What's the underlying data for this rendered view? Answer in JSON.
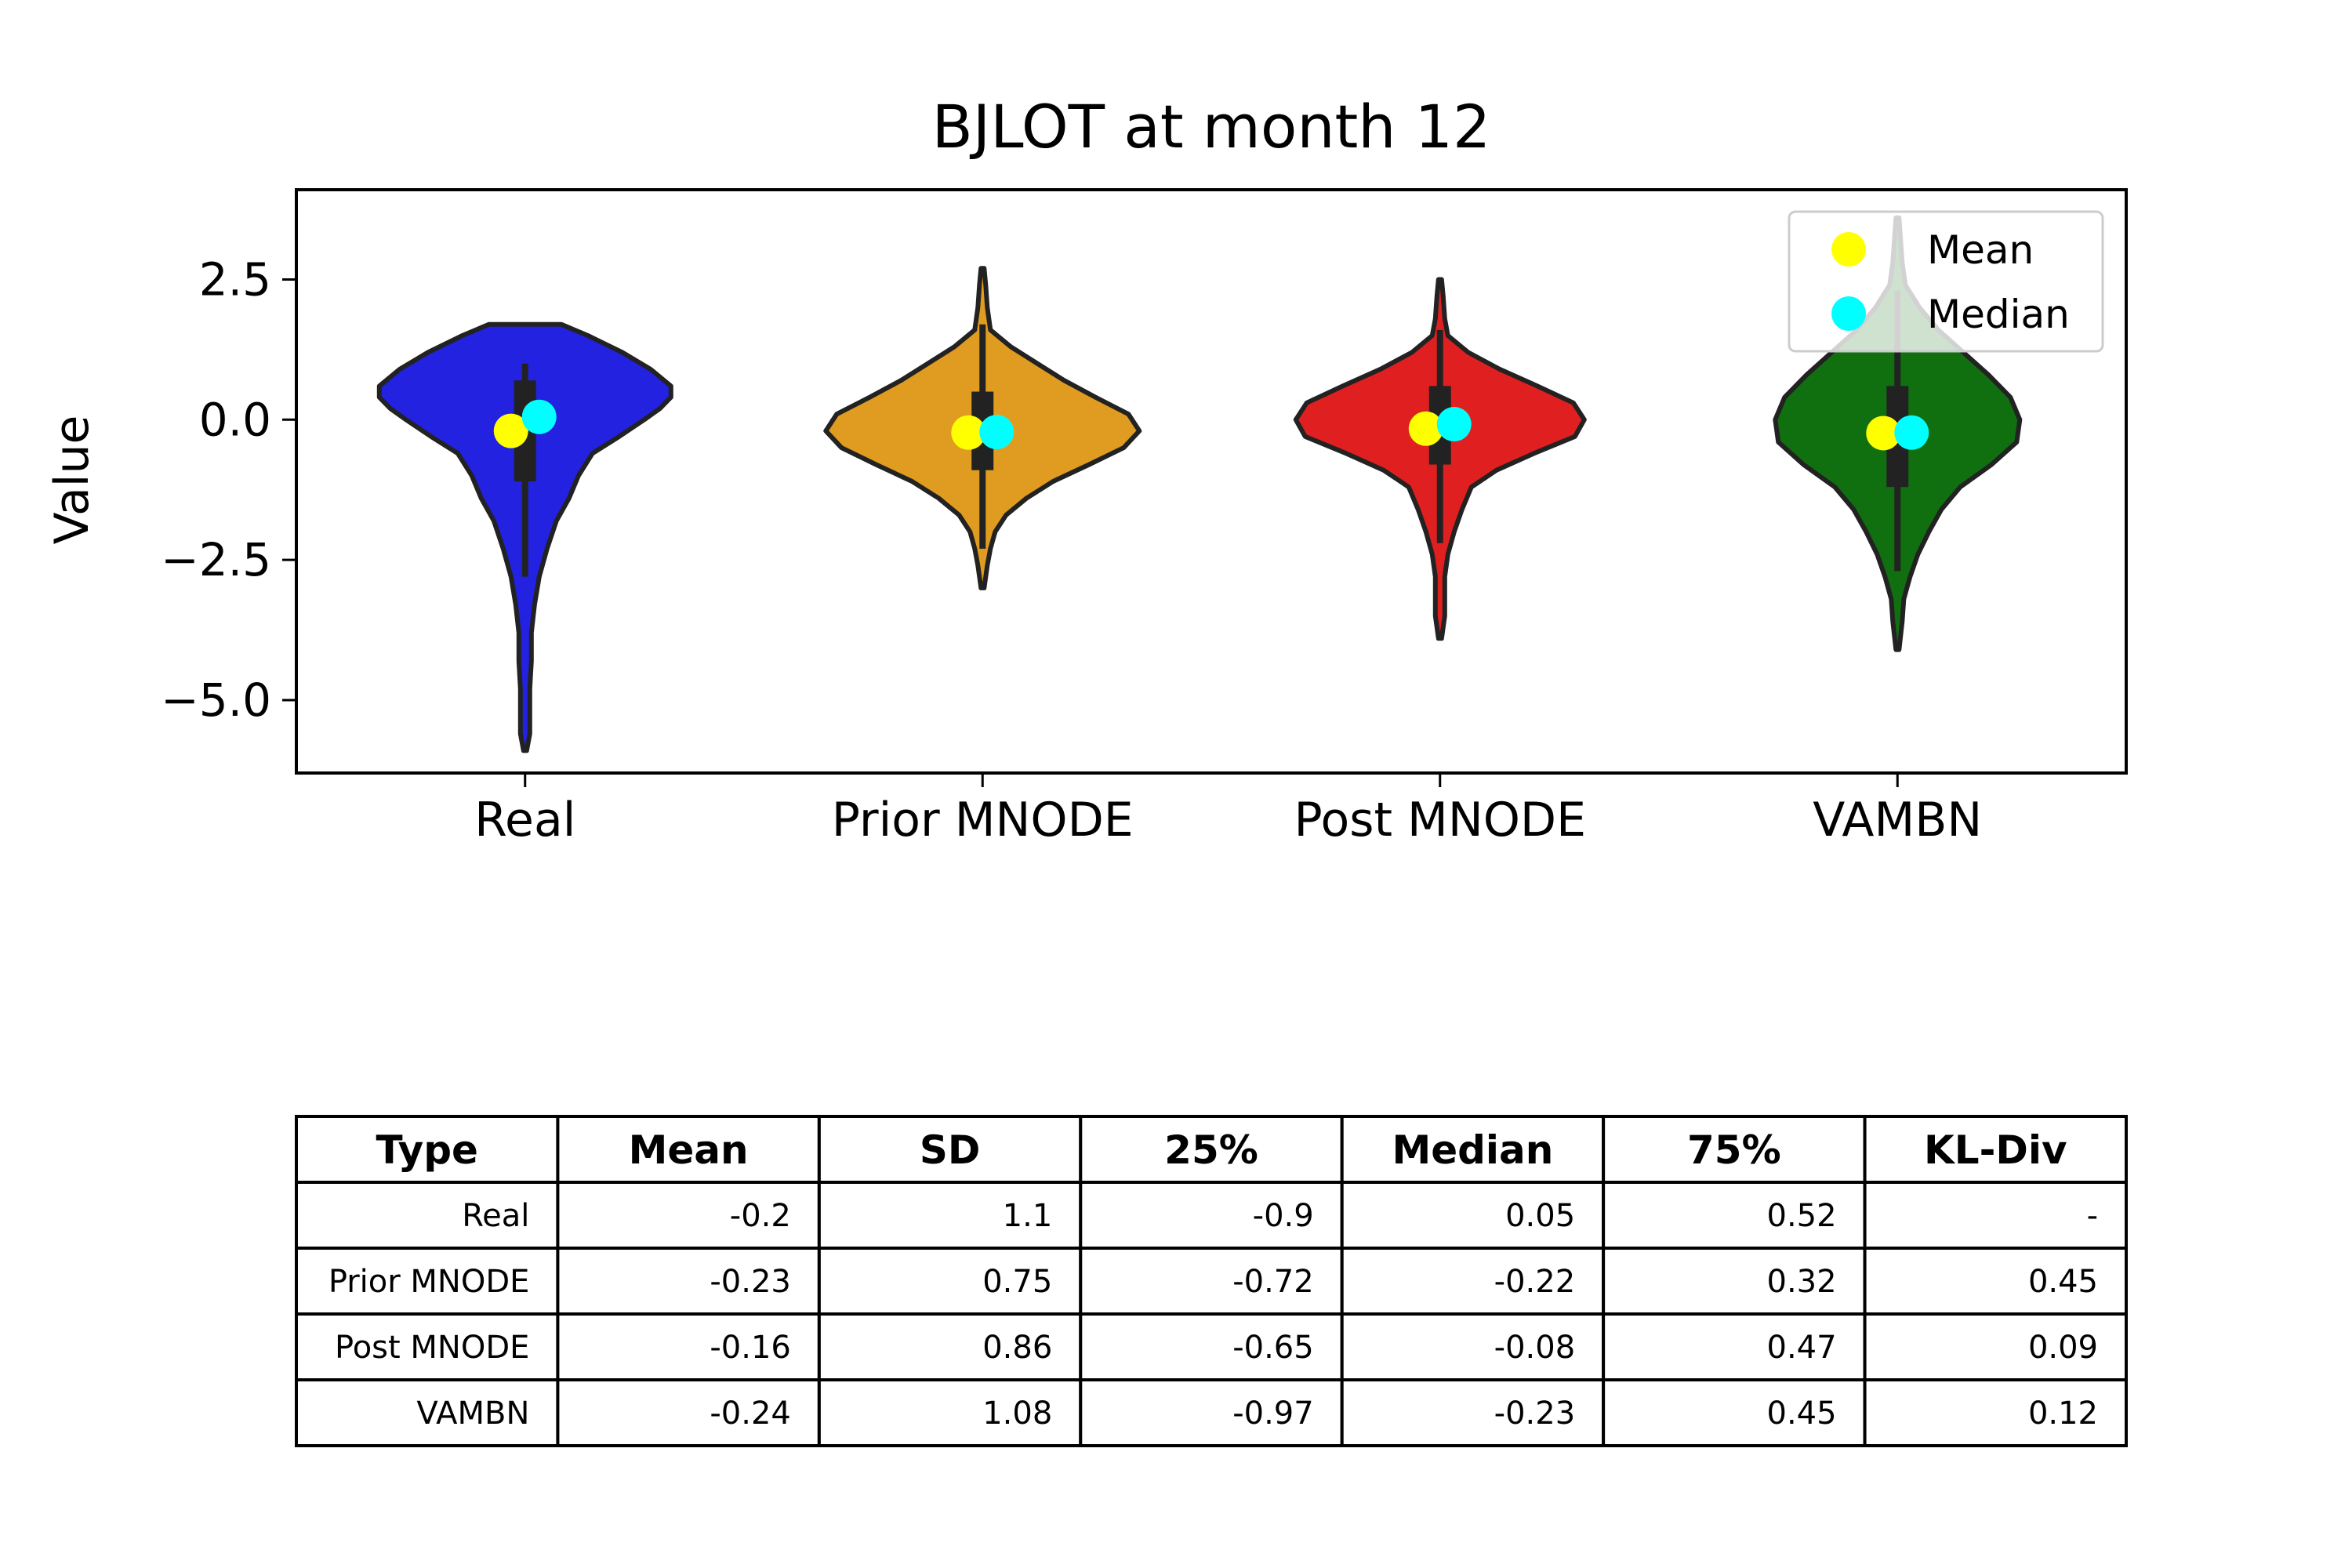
{
  "chart_data": {
    "type": "violin",
    "title": "BJLOT at month 12",
    "ylabel": "Value",
    "xlabel": "",
    "ylim": [
      -6.3,
      4.1
    ],
    "yticks": [
      -5.0,
      -2.5,
      0.0,
      2.5
    ],
    "ytick_labels": [
      "−5.0",
      "−2.5",
      "0.0",
      "2.5"
    ],
    "categories": [
      "Real",
      "Prior MNODE",
      "Post MNODE",
      "VAMBN"
    ],
    "legend": {
      "placement": "top-right",
      "entries": [
        {
          "label": "Mean",
          "color": "#ffff00"
        },
        {
          "label": "Median",
          "color": "#00ffff"
        }
      ]
    },
    "series": [
      {
        "category": "Real",
        "color": "#2222e0",
        "range": [
          -5.9,
          1.7
        ],
        "whisker": [
          -2.8,
          1.0
        ],
        "box": [
          -1.1,
          0.7
        ],
        "mean": -0.2,
        "median": 0.05,
        "density": [
          [
            1.7,
            0.23
          ],
          [
            1.5,
            0.4
          ],
          [
            1.2,
            0.62
          ],
          [
            0.9,
            0.8
          ],
          [
            0.6,
            0.93
          ],
          [
            0.4,
            0.93
          ],
          [
            0.2,
            0.86
          ],
          [
            0.0,
            0.76
          ],
          [
            -0.3,
            0.6
          ],
          [
            -0.6,
            0.43
          ],
          [
            -1.0,
            0.34
          ],
          [
            -1.4,
            0.28
          ],
          [
            -1.8,
            0.2
          ],
          [
            -2.3,
            0.14
          ],
          [
            -2.8,
            0.09
          ],
          [
            -3.3,
            0.06
          ],
          [
            -3.8,
            0.04
          ],
          [
            -4.3,
            0.04
          ],
          [
            -4.8,
            0.03
          ],
          [
            -5.3,
            0.03
          ],
          [
            -5.6,
            0.03
          ],
          [
            -5.9,
            0.01
          ]
        ]
      },
      {
        "category": "Prior MNODE",
        "color": "#e09c20",
        "range": [
          -3.0,
          2.7
        ],
        "whisker": [
          -2.3,
          1.7
        ],
        "box": [
          -0.9,
          0.5
        ],
        "mean": -0.23,
        "median": -0.22,
        "density": [
          [
            2.7,
            0.01
          ],
          [
            2.4,
            0.02
          ],
          [
            2.0,
            0.03
          ],
          [
            1.6,
            0.05
          ],
          [
            1.3,
            0.18
          ],
          [
            1.0,
            0.35
          ],
          [
            0.7,
            0.52
          ],
          [
            0.4,
            0.72
          ],
          [
            0.1,
            0.93
          ],
          [
            -0.2,
            1.0
          ],
          [
            -0.5,
            0.9
          ],
          [
            -0.8,
            0.68
          ],
          [
            -1.1,
            0.45
          ],
          [
            -1.4,
            0.28
          ],
          [
            -1.7,
            0.15
          ],
          [
            -2.0,
            0.08
          ],
          [
            -2.3,
            0.05
          ],
          [
            -2.6,
            0.03
          ],
          [
            -3.0,
            0.01
          ]
        ]
      },
      {
        "category": "Post MNODE",
        "color": "#e02020",
        "range": [
          -3.9,
          2.5
        ],
        "whisker": [
          -2.2,
          1.6
        ],
        "box": [
          -0.8,
          0.6
        ],
        "mean": -0.16,
        "median": -0.08,
        "density": [
          [
            2.5,
            0.01
          ],
          [
            2.2,
            0.02
          ],
          [
            1.8,
            0.03
          ],
          [
            1.5,
            0.05
          ],
          [
            1.2,
            0.18
          ],
          [
            0.9,
            0.38
          ],
          [
            0.6,
            0.62
          ],
          [
            0.3,
            0.85
          ],
          [
            0.0,
            0.92
          ],
          [
            -0.3,
            0.86
          ],
          [
            -0.6,
            0.6
          ],
          [
            -0.9,
            0.36
          ],
          [
            -1.2,
            0.2
          ],
          [
            -1.6,
            0.14
          ],
          [
            -2.0,
            0.09
          ],
          [
            -2.4,
            0.05
          ],
          [
            -2.8,
            0.03
          ],
          [
            -3.2,
            0.03
          ],
          [
            -3.5,
            0.03
          ],
          [
            -3.9,
            0.01
          ]
        ]
      },
      {
        "category": "VAMBN",
        "color": "#107010",
        "range": [
          -4.1,
          3.6
        ],
        "whisker": [
          -2.7,
          2.3
        ],
        "box": [
          -1.2,
          0.6
        ],
        "mean": -0.24,
        "median": -0.23,
        "density": [
          [
            3.6,
            0.01
          ],
          [
            3.2,
            0.02
          ],
          [
            2.8,
            0.03
          ],
          [
            2.4,
            0.05
          ],
          [
            2.0,
            0.14
          ],
          [
            1.6,
            0.26
          ],
          [
            1.2,
            0.42
          ],
          [
            0.8,
            0.58
          ],
          [
            0.4,
            0.72
          ],
          [
            0.0,
            0.78
          ],
          [
            -0.4,
            0.76
          ],
          [
            -0.8,
            0.6
          ],
          [
            -1.2,
            0.4
          ],
          [
            -1.6,
            0.28
          ],
          [
            -2.0,
            0.2
          ],
          [
            -2.4,
            0.13
          ],
          [
            -2.8,
            0.08
          ],
          [
            -3.2,
            0.04
          ],
          [
            -3.6,
            0.03
          ],
          [
            -4.1,
            0.01
          ]
        ]
      }
    ],
    "table": {
      "headers": [
        "Type",
        "Mean",
        "SD",
        "25%",
        "Median",
        "75%",
        "KL-Div"
      ],
      "rows": [
        [
          "Real",
          "-0.2",
          "1.1",
          "-0.9",
          "0.05",
          "0.52",
          "-"
        ],
        [
          "Prior MNODE",
          "-0.23",
          "0.75",
          "-0.72",
          "-0.22",
          "0.32",
          "0.45"
        ],
        [
          "Post MNODE",
          "-0.16",
          "0.86",
          "-0.65",
          "-0.08",
          "0.47",
          "0.09"
        ],
        [
          "VAMBN",
          "-0.24",
          "1.08",
          "-0.97",
          "-0.23",
          "0.45",
          "0.12"
        ]
      ]
    }
  }
}
